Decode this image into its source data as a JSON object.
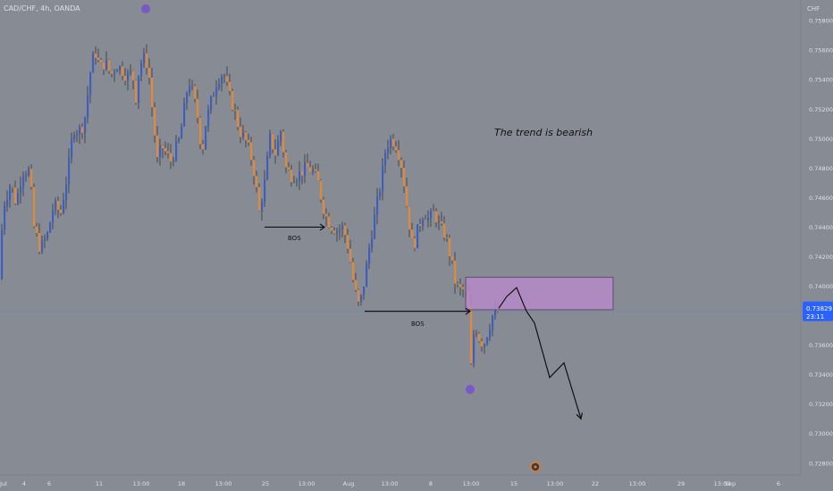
{
  "header": {
    "symbol_title": "CAD/CHF, 4h, OANDA",
    "currency": "CHF"
  },
  "annotations": {
    "trend_text": "The trend is bearish",
    "bos_labels": [
      "BOS",
      "BOS"
    ]
  },
  "price_badge": {
    "price": "0.73829",
    "countdown": "23:11"
  },
  "colors": {
    "background": "#878b94",
    "bull_candle": "#3d5fbf",
    "bear_candle": "#e0893a",
    "zone_fill": "#b58aca",
    "pivot_marker": "#7a58c8",
    "price_badge": "#2962ff"
  },
  "chart_data": {
    "type": "candlestick",
    "title": "CAD/CHF, 4h, OANDA",
    "ylabel": "CHF",
    "ylim": [
      0.7272,
      0.7594
    ],
    "y_ticks": [
      "0.75800",
      "0.75600",
      "0.75400",
      "0.75200",
      "0.75000",
      "0.74800",
      "0.74600",
      "0.74400",
      "0.74200",
      "0.74000",
      "0.73600",
      "0.73400",
      "0.73200",
      "0.73000",
      "0.72800"
    ],
    "x_ticks": [
      "Jul",
      "4",
      "6",
      "11",
      "13:00",
      "18",
      "13:00",
      "25",
      "13:00",
      "Aug",
      "13:00",
      "8",
      "13:00",
      "15",
      "13:00",
      "22",
      "13:00",
      "29",
      "13:00",
      "Sep",
      "6"
    ],
    "last_price": 0.73829,
    "price_path": [
      [
        0,
        0.7405
      ],
      [
        6,
        0.7455
      ],
      [
        14,
        0.747
      ],
      [
        20,
        0.7456
      ],
      [
        27,
        0.7478
      ],
      [
        35,
        0.7478
      ],
      [
        40,
        0.744
      ],
      [
        47,
        0.7425
      ],
      [
        55,
        0.7435
      ],
      [
        62,
        0.7455
      ],
      [
        70,
        0.745
      ],
      [
        78,
        0.7478
      ],
      [
        84,
        0.7507
      ],
      [
        90,
        0.7505
      ],
      [
        96,
        0.751
      ],
      [
        103,
        0.7545
      ],
      [
        108,
        0.756
      ],
      [
        114,
        0.7548
      ],
      [
        120,
        0.7552
      ],
      [
        126,
        0.7543
      ],
      [
        132,
        0.755
      ],
      [
        138,
        0.7547
      ],
      [
        144,
        0.7542
      ],
      [
        150,
        0.7545
      ],
      [
        154,
        0.7528
      ],
      [
        158,
        0.755
      ],
      [
        164,
        0.7555
      ],
      [
        168,
        0.7548
      ],
      [
        173,
        0.7515
      ],
      [
        178,
        0.7485
      ],
      [
        183,
        0.7495
      ],
      [
        188,
        0.749
      ],
      [
        193,
        0.7485
      ],
      [
        198,
        0.7492
      ],
      [
        203,
        0.75
      ],
      [
        208,
        0.752
      ],
      [
        213,
        0.754
      ],
      [
        218,
        0.753
      ],
      [
        223,
        0.7515
      ],
      [
        228,
        0.749
      ],
      [
        232,
        0.751
      ],
      [
        238,
        0.7525
      ],
      [
        245,
        0.754
      ],
      [
        252,
        0.7545
      ],
      [
        258,
        0.753
      ],
      [
        264,
        0.752
      ],
      [
        270,
        0.7505
      ],
      [
        276,
        0.75
      ],
      [
        282,
        0.749
      ],
      [
        287,
        0.7475
      ],
      [
        292,
        0.745
      ],
      [
        298,
        0.747
      ],
      [
        304,
        0.75
      ],
      [
        310,
        0.749
      ],
      [
        316,
        0.7505
      ],
      [
        322,
        0.748
      ],
      [
        328,
        0.7475
      ],
      [
        334,
        0.7475
      ],
      [
        340,
        0.7478
      ],
      [
        346,
        0.748
      ],
      [
        352,
        0.7478
      ],
      [
        358,
        0.747
      ],
      [
        363,
        0.7455
      ],
      [
        368,
        0.7445
      ],
      [
        374,
        0.744
      ],
      [
        380,
        0.7438
      ],
      [
        386,
        0.744
      ],
      [
        392,
        0.7425
      ],
      [
        398,
        0.74
      ],
      [
        404,
        0.7385
      ],
      [
        410,
        0.7405
      ],
      [
        416,
        0.743
      ],
      [
        422,
        0.745
      ],
      [
        428,
        0.747
      ],
      [
        434,
        0.7495
      ],
      [
        440,
        0.75
      ],
      [
        446,
        0.7495
      ],
      [
        452,
        0.748
      ],
      [
        458,
        0.745
      ],
      [
        464,
        0.7425
      ],
      [
        470,
        0.744
      ],
      [
        476,
        0.745
      ],
      [
        482,
        0.7445
      ],
      [
        488,
        0.745
      ],
      [
        494,
        0.744
      ],
      [
        500,
        0.7435
      ],
      [
        506,
        0.742
      ],
      [
        512,
        0.74
      ],
      [
        518,
        0.7397
      ],
      [
        522,
        0.7398
      ],
      [
        526,
        0.7385
      ],
      [
        529,
        0.7345
      ],
      [
        533,
        0.7375
      ],
      [
        538,
        0.7365
      ],
      [
        543,
        0.736
      ],
      [
        548,
        0.737
      ],
      [
        553,
        0.738
      ],
      [
        558,
        0.7383
      ]
    ],
    "supply_zone": {
      "price_top": 0.7406,
      "price_bottom": 0.7384,
      "x_start": 521,
      "x_end": 686
    },
    "projection_path": [
      [
        558,
        0.7385
      ],
      [
        567,
        0.7393
      ],
      [
        578,
        0.7399
      ],
      [
        589,
        0.7383
      ],
      [
        598,
        0.7375
      ],
      [
        615,
        0.7338
      ],
      [
        631,
        0.7348
      ],
      [
        650,
        0.731
      ]
    ],
    "bos_lines": [
      {
        "label": "BOS",
        "price": 0.744,
        "x_start": 296,
        "x_end": 363
      },
      {
        "label": "BOS",
        "price": 0.7383,
        "x_start": 408,
        "x_end": 526
      }
    ],
    "pivot_markers": [
      {
        "x": 163,
        "price": 0.7588
      },
      {
        "x": 526,
        "price": 0.733
      }
    ],
    "grid": false
  }
}
